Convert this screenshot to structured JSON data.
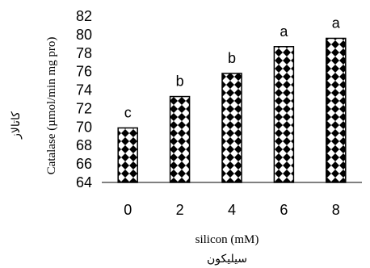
{
  "chart_data": {
    "type": "bar",
    "categories": [
      "0",
      "2",
      "4",
      "6",
      "8"
    ],
    "values": [
      69.9,
      73.3,
      75.8,
      78.7,
      79.6
    ],
    "labels": [
      "c",
      "b",
      "b",
      "a",
      "a"
    ],
    "xlabel": "silicon (mM)",
    "xlabel_fa": "سیلیکون",
    "ylabel": "Catalase (µmol/min mg pro)",
    "ylabel_fa": "کاتالاز",
    "ylim": [
      64,
      82
    ],
    "yticks": [
      64,
      66,
      68,
      70,
      72,
      74,
      76,
      78,
      80,
      82
    ],
    "grid": false,
    "legend": "none",
    "bar_pattern": "black-diamond-dots",
    "colors": {
      "bar_border": "#000000",
      "pattern_fill": "#000000",
      "background": "#ffffff"
    }
  }
}
